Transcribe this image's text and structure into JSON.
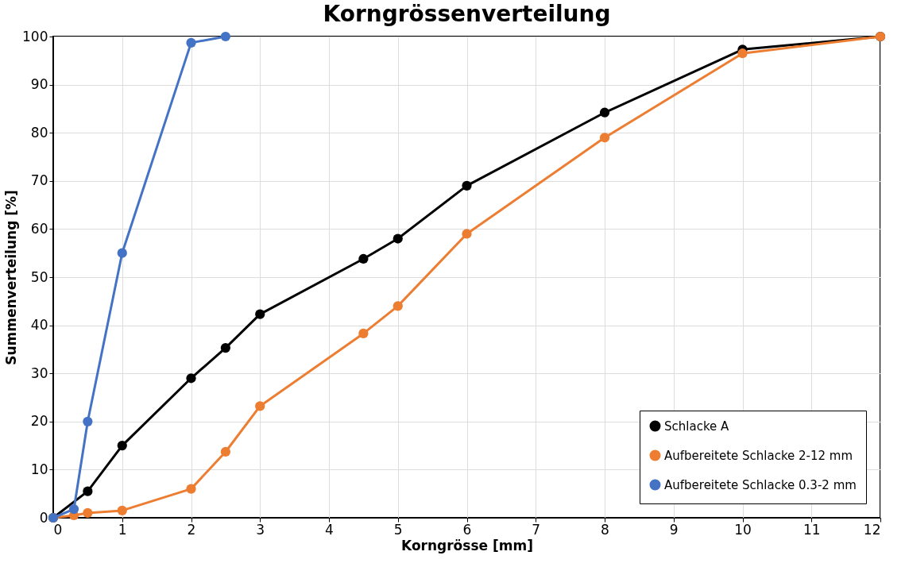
{
  "chart_data": {
    "type": "line",
    "title": "Korngrössenverteilung",
    "xlabel": "Korngrösse [mm]",
    "ylabel": "Summenverteilung [%]",
    "series": [
      {
        "name": "Schlacke A",
        "color": "#000000",
        "x": [
          0,
          0.5,
          1,
          2,
          2.5,
          3,
          4.5,
          5,
          6,
          8,
          10,
          12
        ],
        "values": [
          0,
          5.5,
          15,
          29,
          35.3,
          42.3,
          53.8,
          58,
          69,
          84.2,
          97.3,
          100
        ]
      },
      {
        "name": "Aufbereitete Schlacke 2-12 mm",
        "color": "#ed7d31",
        "x": [
          0,
          0.3,
          0.5,
          1,
          2,
          2.5,
          3,
          4.5,
          5,
          6,
          8,
          10,
          12
        ],
        "values": [
          0,
          0.5,
          1,
          1.5,
          6,
          13.7,
          23.2,
          38.3,
          44,
          59,
          79,
          96.5,
          100
        ]
      },
      {
        "name": "Aufbereitete Schlacke 0.3-2 mm",
        "color": "#4472c4",
        "x": [
          0,
          0.3,
          0.5,
          1,
          2,
          2.5
        ],
        "values": [
          0,
          1.8,
          20,
          55,
          98.7,
          100
        ]
      }
    ],
    "xlim": [
      0,
      12
    ],
    "xticks": [
      0,
      1,
      2,
      3,
      4,
      5,
      6,
      7,
      8,
      9,
      10,
      11,
      12
    ],
    "ylim": [
      0,
      100
    ],
    "yticks": [
      0,
      10,
      20,
      30,
      40,
      50,
      60,
      70,
      80,
      90,
      100
    ],
    "grid": true,
    "legend": "bottom right",
    "marker": "circle",
    "line_style": "solid"
  }
}
